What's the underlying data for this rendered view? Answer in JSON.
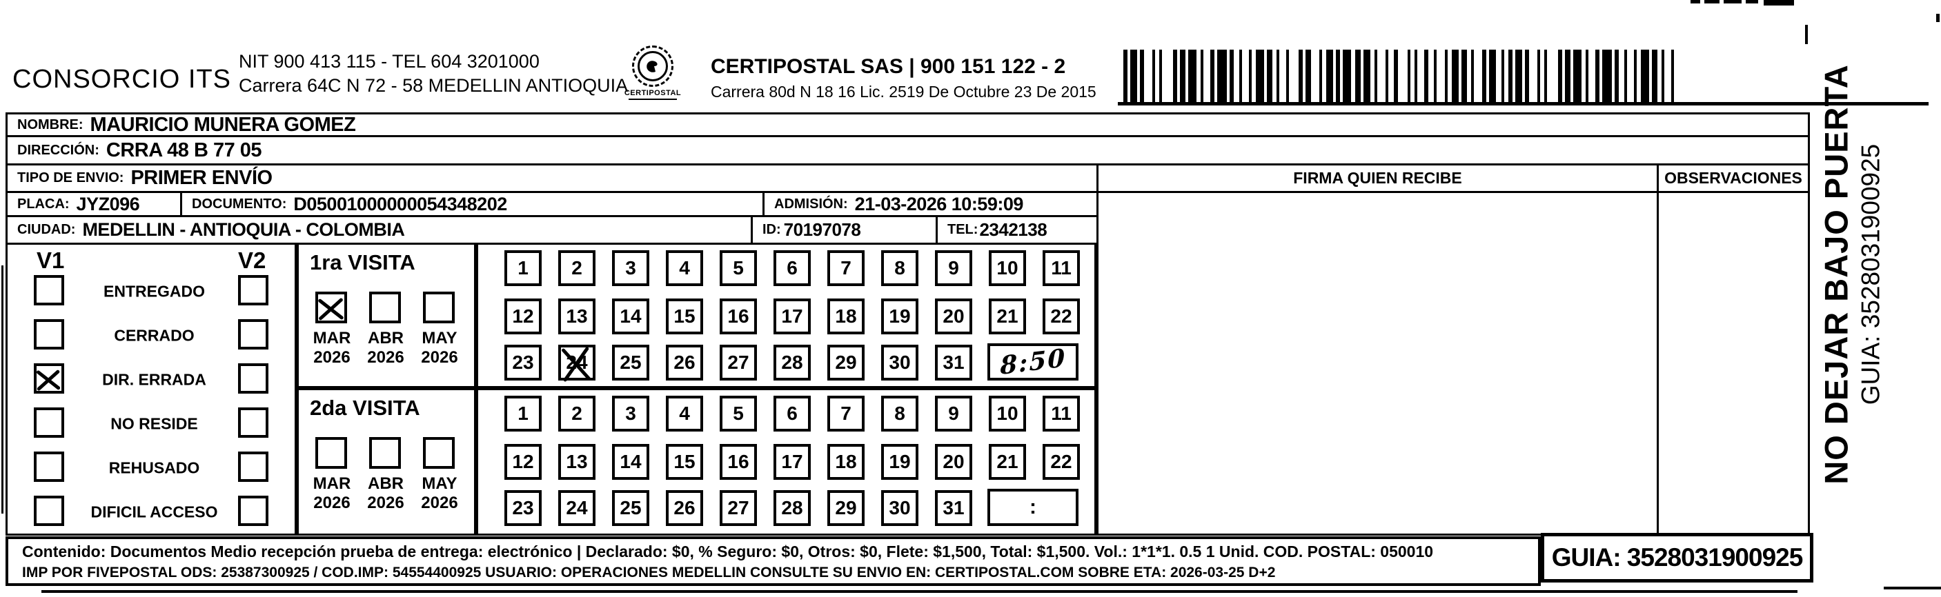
{
  "header": {
    "company": "CONSORCIO ITS",
    "company_info_line1": "NIT 900 413 115 - TEL 604 3201000",
    "company_info_line2": "Carrera 64C N 72 - 58 MEDELLIN ANTIOQUIA",
    "logo_caption": "CERTIPOSTAL",
    "carrier_line1": "CERTIPOSTAL SAS | 900 151 122 - 2",
    "carrier_line2": "Carrera 80d N 18 16  Lic. 2519 De Octubre 23 De 2015"
  },
  "recipient": {
    "nombre_label": "NOMBRE:",
    "nombre": "MAURICIO MUNERA GOMEZ",
    "direccion_label": "DIRECCIÓN:",
    "direccion": "CRRA 48 B 77 05",
    "tipo_label": "TIPO DE ENVIO:",
    "tipo": "PRIMER ENVÍO",
    "placa_label": "PLACA:",
    "placa": "JYZ096",
    "documento_label": "DOCUMENTO:",
    "documento": "D05001000000054348202",
    "admision_label": "ADMISIÓN:",
    "admision": "21-03-2026 10:59:09",
    "ciudad_label": "CIUDAD:",
    "ciudad": "MEDELLIN - ANTIOQUIA - COLOMBIA",
    "id_label": "ID:",
    "id": "70197078",
    "tel_label": "TEL:",
    "tel": "2342138"
  },
  "signature": {
    "firma_header": "FIRMA QUIEN RECIBE",
    "observaciones_header": "OBSERVACIONES"
  },
  "status": {
    "v1_label": "V1",
    "v2_label": "V2",
    "options": [
      "ENTREGADO",
      "CERRADO",
      "DIR. ERRADA",
      "NO RESIDE",
      "REHUSADO",
      "DIFICIL ACCESO"
    ],
    "v1_checked": [
      false,
      false,
      true,
      false,
      false,
      false
    ],
    "v2_checked": [
      false,
      false,
      false,
      false,
      false,
      false
    ]
  },
  "visits": {
    "first": {
      "title": "1ra VISITA",
      "months": [
        "MAR",
        "ABR",
        "MAY"
      ],
      "year": "2026",
      "months_checked": [
        true,
        false,
        false
      ],
      "day_rows": [
        [
          "1",
          "2",
          "3",
          "4",
          "5",
          "6",
          "7",
          "8",
          "9",
          "10",
          "11"
        ],
        [
          "12",
          "13",
          "14",
          "15",
          "16",
          "17",
          "18",
          "19",
          "20",
          "21",
          "22"
        ],
        [
          "23",
          "24",
          "25",
          "26",
          "27",
          "28",
          "29",
          "30",
          "31"
        ]
      ],
      "crossed_day": "24",
      "time_note": "8:50"
    },
    "second": {
      "title": "2da VISITA",
      "months": [
        "MAR",
        "ABR",
        "MAY"
      ],
      "year": "2026",
      "months_checked": [
        false,
        false,
        false
      ],
      "day_rows": [
        [
          "1",
          "2",
          "3",
          "4",
          "5",
          "6",
          "7",
          "8",
          "9",
          "10",
          "11"
        ],
        [
          "12",
          "13",
          "14",
          "15",
          "16",
          "17",
          "18",
          "19",
          "20",
          "21",
          "22"
        ],
        [
          "23",
          "24",
          "25",
          "26",
          "27",
          "28",
          "29",
          "30",
          "31"
        ]
      ],
      "crossed_day": "",
      "time_note": ":"
    }
  },
  "footer": {
    "line1": "Contenido: Documentos Medio recepción prueba de entrega: electrónico | Declarado: $0, % Seguro: $0, Otros: $0, Flete: $1,500, Total: $1,500. Vol.: 1*1*1. 0.5  1 Unid. COD. POSTAL: 050010",
    "line2": "IMP POR FIVEPOSTAL ODS: 25387300925 / COD.IMP: 54554400925 USUARIO: OPERACIONES MEDELLIN CONSULTE SU ENVIO EN: CERTIPOSTAL.COM SOBRE ETA: 2026-03-25 D+2",
    "guia_box": "GUIA: 3528031900925"
  },
  "side_note": {
    "line1": "NO DEJAR BAJO PUERTA",
    "line2": "GUIA: 3528031900925"
  }
}
